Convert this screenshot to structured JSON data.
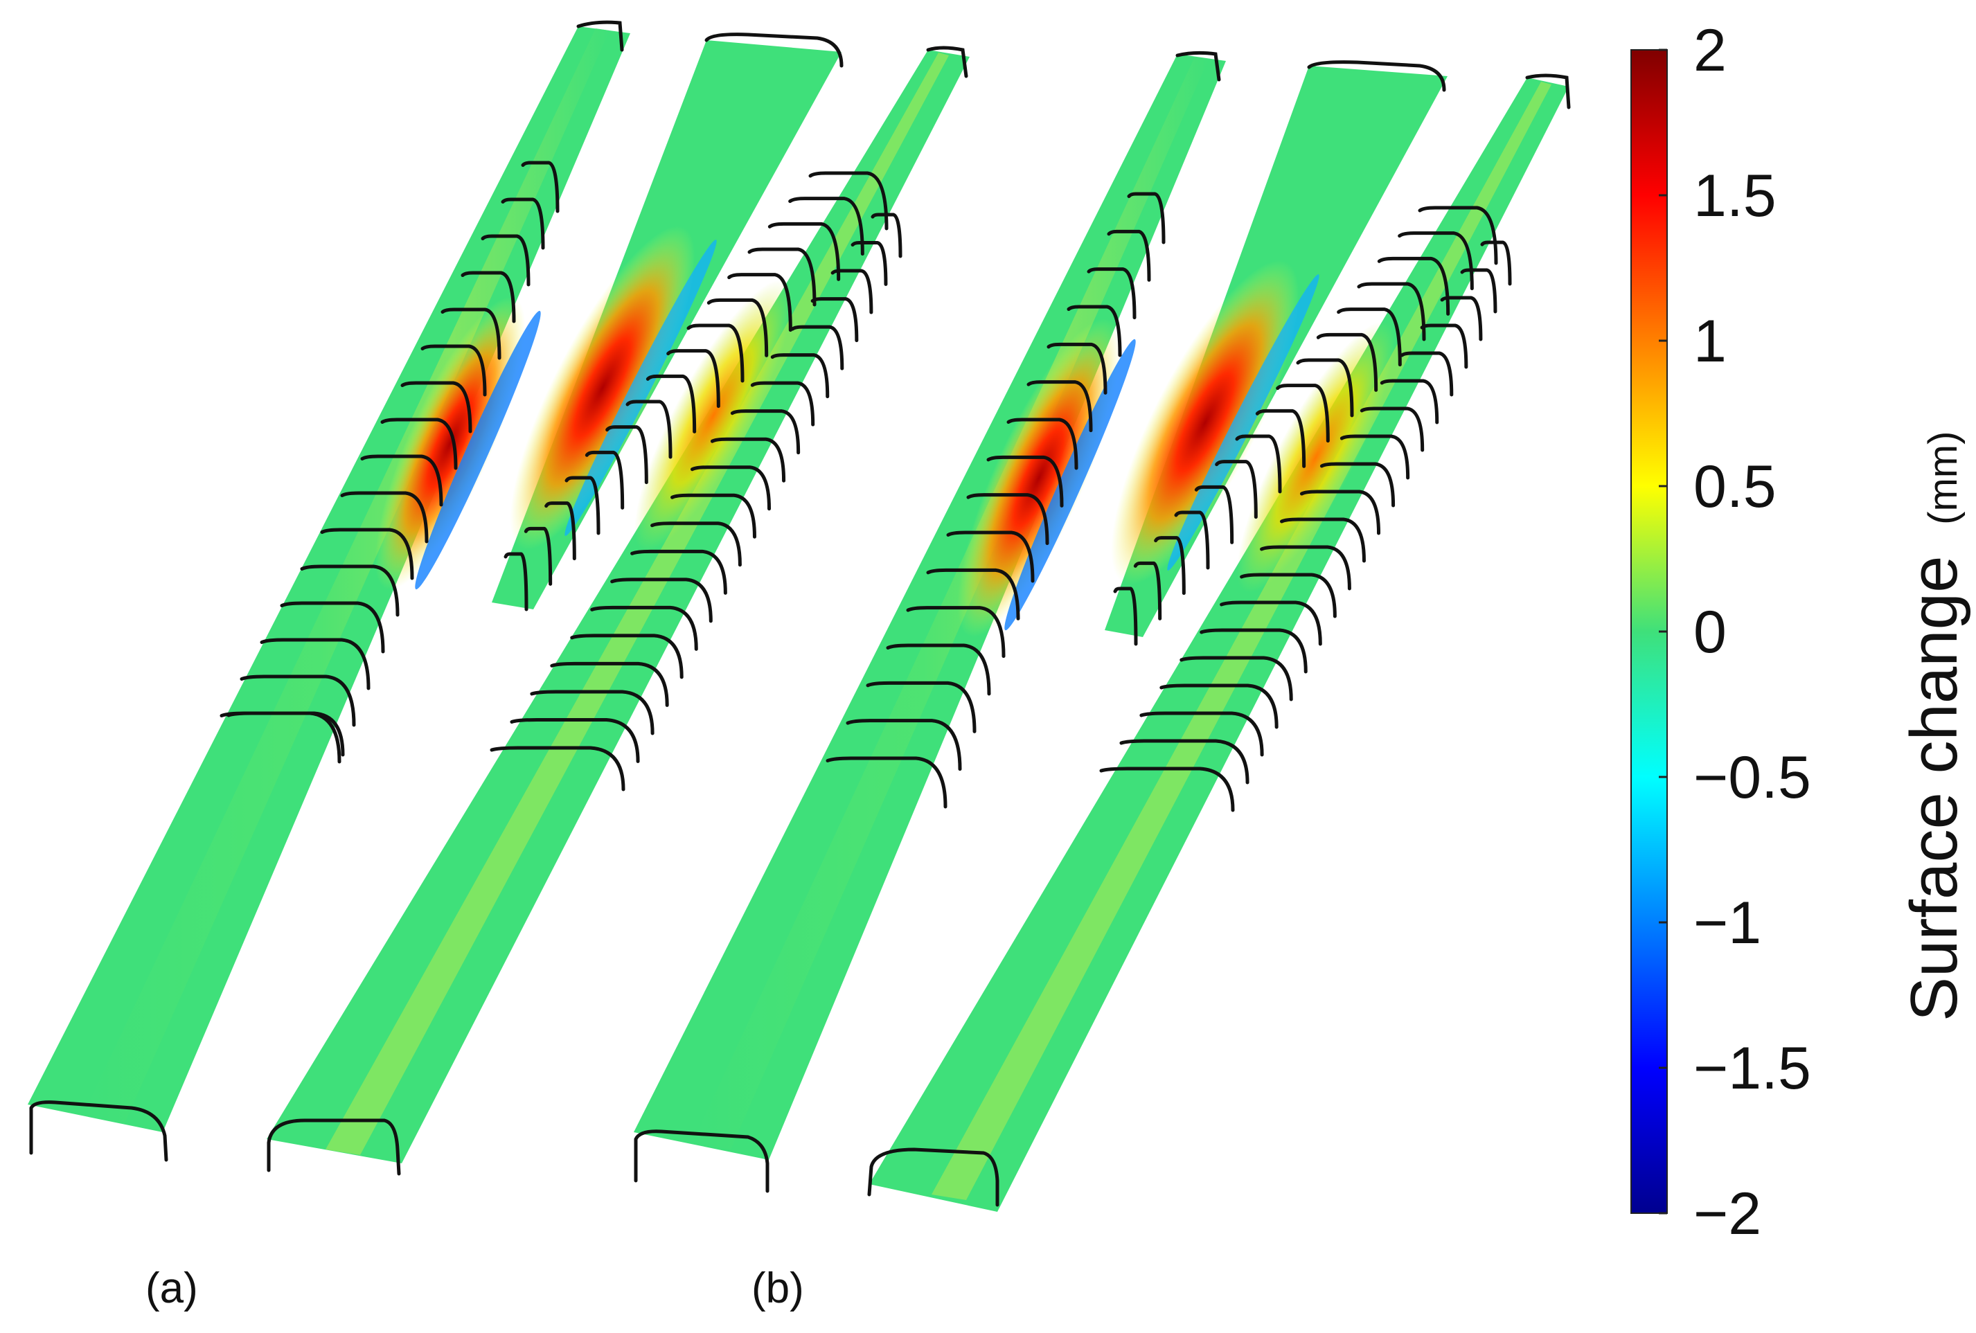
{
  "panels": [
    {
      "label": "(a)"
    },
    {
      "label": "(b)"
    }
  ],
  "colorbar": {
    "title": "Surface change",
    "unit": "(mm)",
    "min": -2,
    "max": 2,
    "ticks": [
      "2",
      "1.5",
      "1",
      "0.5",
      "0",
      "−0.5",
      "−1",
      "−1.5",
      "−2"
    ],
    "colormap": [
      "#00008f",
      "#0000ff",
      "#0080ff",
      "#00ffff",
      "#80ff80",
      "#ffff00",
      "#ff8000",
      "#ff0000",
      "#800000"
    ]
  },
  "colors": {
    "surface_base": "#3fe07a",
    "surface_light": "#8ee85a",
    "edge": "#111111"
  }
}
